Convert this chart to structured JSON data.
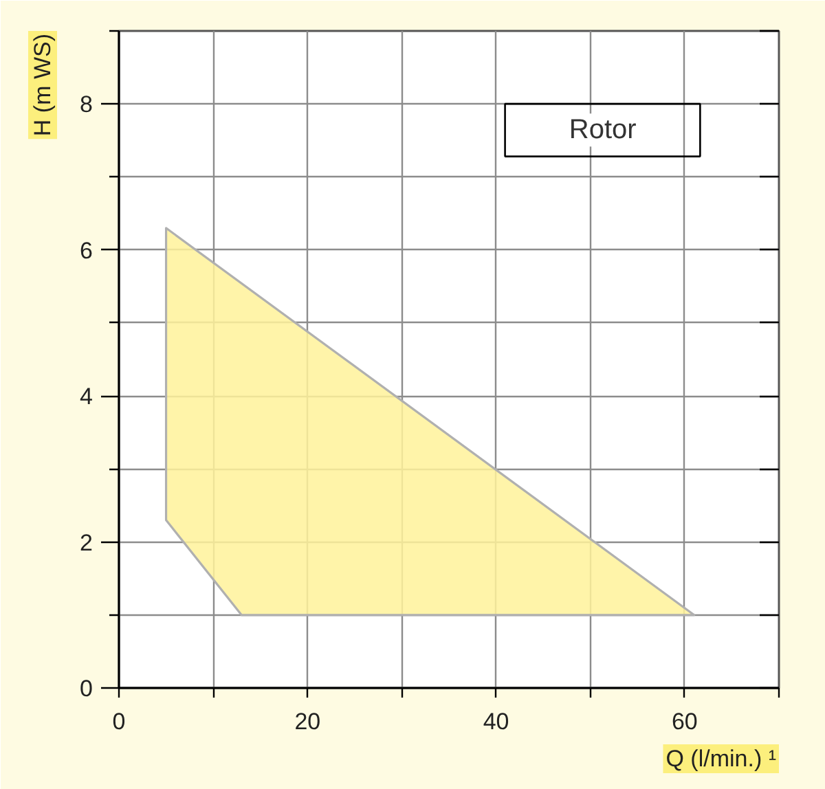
{
  "chart_data": {
    "type": "area",
    "xlabel": "Q (l/min.) ¹",
    "ylabel": "H (m WS)",
    "annotations": [
      "Rotor"
    ],
    "xlim": [
      0,
      70
    ],
    "ylim": [
      0,
      9
    ],
    "xticks": [
      0,
      {
        "value": 10,
        "label": null
      },
      20,
      {
        "value": 30,
        "label": null
      },
      40,
      {
        "value": 50,
        "label": null
      },
      60,
      {
        "value": 70,
        "label": null
      }
    ],
    "yticks": [
      0,
      {
        "value": 1,
        "label": null
      },
      2,
      {
        "value": 3,
        "label": null
      },
      4,
      {
        "value": 5,
        "label": null
      },
      6,
      {
        "value": 7,
        "label": null
      },
      8,
      {
        "value": 9,
        "label": null
      }
    ],
    "grid": true,
    "series": [
      {
        "color": "#fff29a",
        "x": [
          5,
          61,
          13,
          5
        ],
        "values": [
          6.3,
          1,
          1,
          2.3
        ]
      }
    ]
  }
}
